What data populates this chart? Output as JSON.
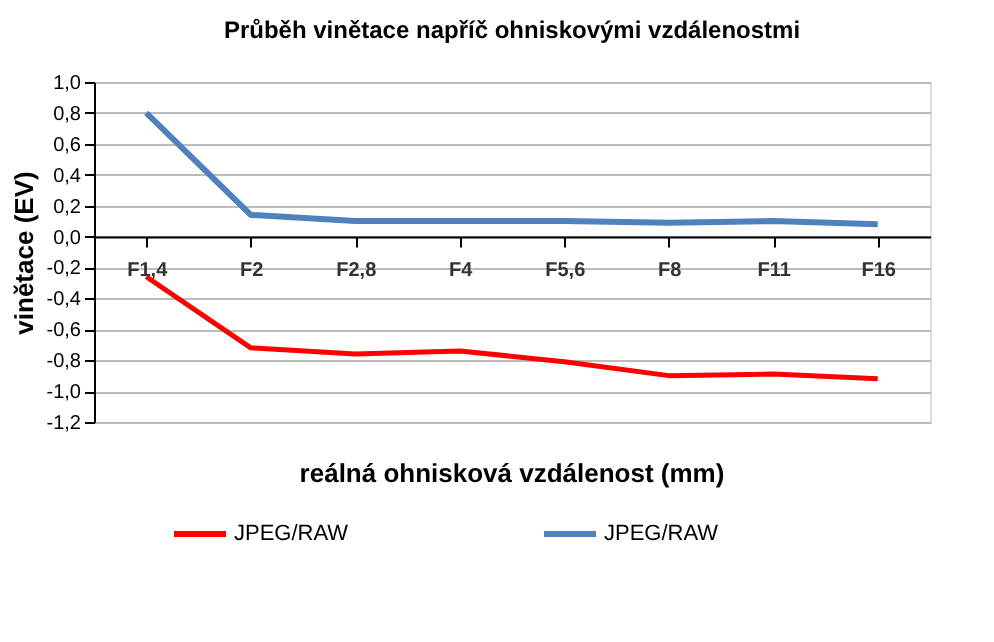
{
  "chart_data": {
    "type": "line",
    "title": "Průběh vinětace napříč ohniskovými vzdálenostmi",
    "xlabel": "reálná ohnisková  vzdálenost (mm)",
    "ylabel": "vinětace (EV)",
    "categories": [
      "F1,4",
      "F2",
      "F2,8",
      "F4",
      "F5,6",
      "F8",
      "F11",
      "F16"
    ],
    "series": [
      {
        "name": "JPEG/RAW",
        "color": "#ff0000",
        "values": [
          -0.26,
          -0.72,
          -0.76,
          -0.74,
          -0.81,
          -0.9,
          -0.89,
          -0.92
        ]
      },
      {
        "name": "JPEG/RAW",
        "color": "#4f81bd",
        "values": [
          0.8,
          0.14,
          0.1,
          0.1,
          0.1,
          0.09,
          0.1,
          0.08
        ]
      }
    ],
    "ylim": [
      -1.2,
      1.0
    ],
    "yticks": [
      {
        "value": 1.0,
        "label": "1,0"
      },
      {
        "value": 0.8,
        "label": "0,8"
      },
      {
        "value": 0.6,
        "label": "0,6"
      },
      {
        "value": 0.4,
        "label": "0,4"
      },
      {
        "value": 0.2,
        "label": "0,2"
      },
      {
        "value": 0.0,
        "label": "0,0"
      },
      {
        "value": -0.2,
        "label": "-0,2"
      },
      {
        "value": -0.4,
        "label": "-0,4"
      },
      {
        "value": -0.6,
        "label": "-0,6"
      },
      {
        "value": -0.8,
        "label": "-0,8"
      },
      {
        "value": -1.0,
        "label": "-1,0"
      },
      {
        "value": -1.2,
        "label": "-1,2"
      }
    ],
    "grid": "y",
    "legend": "bottom",
    "marker": "none",
    "line_style": "solid"
  }
}
